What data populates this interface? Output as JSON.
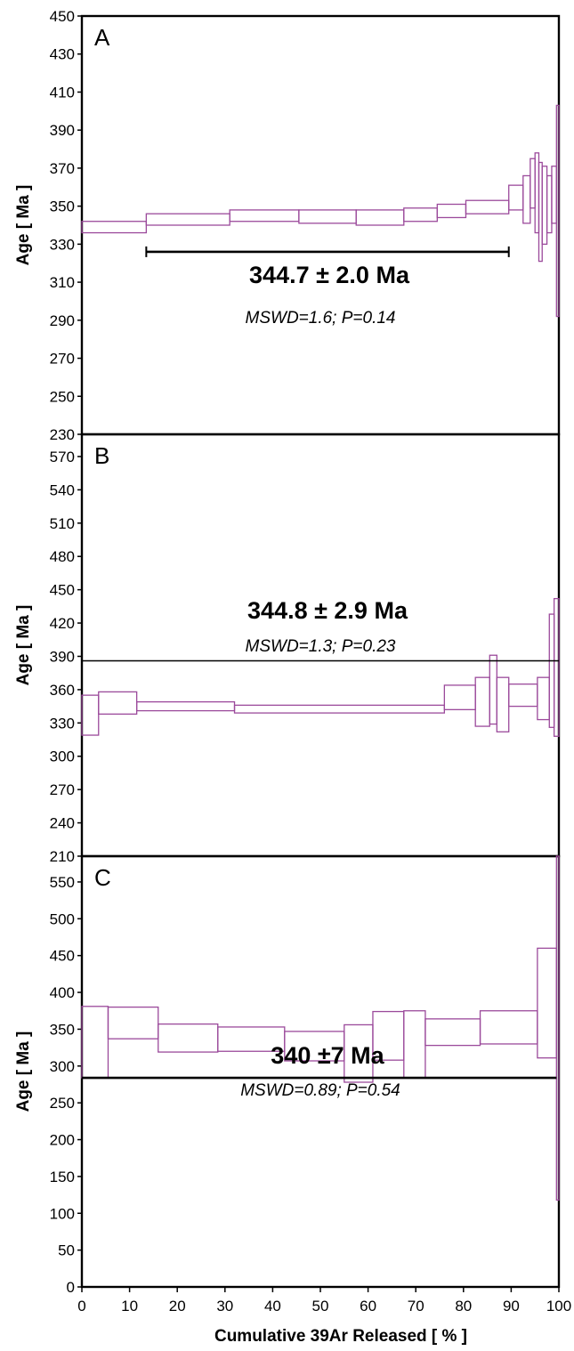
{
  "chart_data": {
    "type": "step-spectrum",
    "xlabel": "Cumulative 39Ar Released [ % ]",
    "xlim": [
      0,
      100
    ],
    "xticks": [
      0,
      10,
      20,
      30,
      40,
      50,
      60,
      70,
      80,
      90,
      100
    ],
    "colors": {
      "steps": "#9b4a9b",
      "frame": "#000000"
    },
    "panels": [
      {
        "label": "A",
        "ylabel": "Age [ Ma ]",
        "ylim": [
          230,
          450
        ],
        "yticks": [
          230,
          250,
          270,
          290,
          310,
          330,
          350,
          370,
          390,
          410,
          430,
          450
        ],
        "plateau_age": "344.7 ± 2.0 Ma",
        "stats": "MSWD=1.6; P=0.14",
        "plateau_bar": {
          "x0": 13.5,
          "x1": 89.5,
          "y": 326
        },
        "steps": [
          {
            "x0": 0,
            "x1": 13.5,
            "lo": 336,
            "hi": 342
          },
          {
            "x0": 13.5,
            "x1": 31,
            "lo": 340,
            "hi": 346
          },
          {
            "x0": 31,
            "x1": 45.5,
            "lo": 342,
            "hi": 348
          },
          {
            "x0": 45.5,
            "x1": 57.5,
            "lo": 341,
            "hi": 348
          },
          {
            "x0": 57.5,
            "x1": 67.5,
            "lo": 340,
            "hi": 348
          },
          {
            "x0": 67.5,
            "x1": 74.5,
            "lo": 342,
            "hi": 349
          },
          {
            "x0": 74.5,
            "x1": 80.5,
            "lo": 344,
            "hi": 351
          },
          {
            "x0": 80.5,
            "x1": 89.5,
            "lo": 346,
            "hi": 353
          },
          {
            "x0": 89.5,
            "x1": 92.5,
            "lo": 348,
            "hi": 361
          },
          {
            "x0": 92.5,
            "x1": 94,
            "lo": 341,
            "hi": 366
          },
          {
            "x0": 94,
            "x1": 95,
            "lo": 349,
            "hi": 375
          },
          {
            "x0": 95,
            "x1": 95.8,
            "lo": 336,
            "hi": 378
          },
          {
            "x0": 95.8,
            "x1": 96.5,
            "lo": 321,
            "hi": 373
          },
          {
            "x0": 96.5,
            "x1": 97.5,
            "lo": 330,
            "hi": 371
          },
          {
            "x0": 97.5,
            "x1": 98.5,
            "lo": 336,
            "hi": 366
          },
          {
            "x0": 98.5,
            "x1": 99.5,
            "lo": 341,
            "hi": 371
          },
          {
            "x0": 99.5,
            "x1": 100,
            "lo": 292,
            "hi": 403
          }
        ]
      },
      {
        "label": "B",
        "ylabel": "Age [ Ma ]",
        "ylim": [
          210,
          590
        ],
        "yticks": [
          210,
          240,
          270,
          300,
          330,
          360,
          390,
          420,
          450,
          480,
          510,
          540,
          570
        ],
        "plateau_age": "344.8 ± 2.9 Ma",
        "stats": "MSWD=1.3; P=0.23",
        "plateau_bar": {
          "x0": 0,
          "x1": 100,
          "y": 386
        },
        "steps": [
          {
            "x0": 0,
            "x1": 3.5,
            "lo": 319,
            "hi": 355
          },
          {
            "x0": 3.5,
            "x1": 11.5,
            "lo": 338,
            "hi": 358
          },
          {
            "x0": 11.5,
            "x1": 32,
            "lo": 341,
            "hi": 349
          },
          {
            "x0": 32,
            "x1": 76,
            "lo": 339,
            "hi": 346
          },
          {
            "x0": 76,
            "x1": 82.5,
            "lo": 342,
            "hi": 364
          },
          {
            "x0": 82.5,
            "x1": 85.5,
            "lo": 327,
            "hi": 371
          },
          {
            "x0": 85.5,
            "x1": 87,
            "lo": 329,
            "hi": 391
          },
          {
            "x0": 87,
            "x1": 89.5,
            "lo": 322,
            "hi": 371
          },
          {
            "x0": 89.5,
            "x1": 95.5,
            "lo": 345,
            "hi": 365
          },
          {
            "x0": 95.5,
            "x1": 98,
            "lo": 333,
            "hi": 371
          },
          {
            "x0": 98,
            "x1": 99,
            "lo": 326,
            "hi": 428
          },
          {
            "x0": 99,
            "x1": 100,
            "lo": 318,
            "hi": 442
          }
        ]
      },
      {
        "label": "C",
        "ylabel": "Age [ Ma ]",
        "ylim": [
          0,
          585
        ],
        "yticks": [
          0,
          50,
          100,
          150,
          200,
          250,
          300,
          350,
          400,
          450,
          500,
          550
        ],
        "plateau_age": "340 ±7 Ma",
        "stats": "MSWD=0.89; P=0.54",
        "plateau_bar": {
          "x0": 0,
          "x1": 99.5,
          "y": 284
        },
        "steps": [
          {
            "x0": 0,
            "x1": 5.5,
            "lo": 284,
            "hi": 381
          },
          {
            "x0": 5.5,
            "x1": 16,
            "lo": 337,
            "hi": 380
          },
          {
            "x0": 16,
            "x1": 28.5,
            "lo": 319,
            "hi": 357
          },
          {
            "x0": 28.5,
            "x1": 42.5,
            "lo": 320,
            "hi": 353
          },
          {
            "x0": 42.5,
            "x1": 55,
            "lo": 307,
            "hi": 347
          },
          {
            "x0": 55,
            "x1": 61,
            "lo": 278,
            "hi": 356
          },
          {
            "x0": 61,
            "x1": 67.5,
            "lo": 308,
            "hi": 374
          },
          {
            "x0": 67.5,
            "x1": 72,
            "lo": 284,
            "hi": 375
          },
          {
            "x0": 72,
            "x1": 83.5,
            "lo": 328,
            "hi": 364
          },
          {
            "x0": 83.5,
            "x1": 95.5,
            "lo": 330,
            "hi": 375
          },
          {
            "x0": 95.5,
            "x1": 99.5,
            "lo": 311,
            "hi": 460
          },
          {
            "x0": 99.5,
            "x1": 100,
            "lo": 118,
            "hi": 585
          }
        ]
      }
    ]
  }
}
